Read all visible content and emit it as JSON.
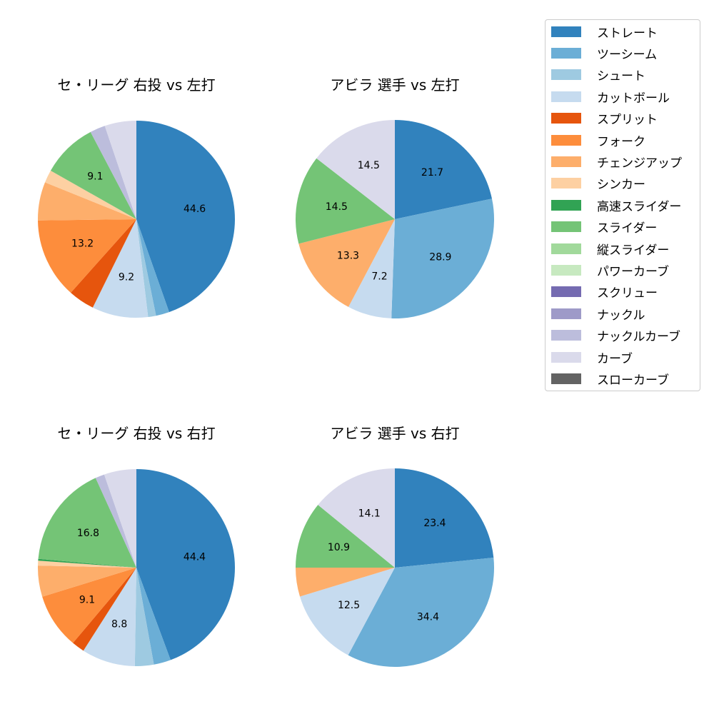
{
  "chart_data": [
    {
      "type": "pie",
      "title": "セ・リーグ 右投 vs 左打",
      "categories": [
        "ストレート",
        "ツーシーム",
        "シュート",
        "カットボール",
        "スプリット",
        "フォーク",
        "チェンジアップ",
        "シンカー",
        "スライダー",
        "ナックルカーブ",
        "カーブ"
      ],
      "values": [
        44.6,
        2.2,
        1.3,
        9.2,
        4.3,
        13.2,
        6.3,
        2.1,
        9.1,
        2.5,
        5.2
      ],
      "labels_shown": [
        "44.6",
        "",
        "",
        "9.2",
        "",
        "13.2",
        "",
        "",
        "9.1",
        "",
        ""
      ]
    },
    {
      "type": "pie",
      "title": "アビラ 選手 vs 左打",
      "categories": [
        "ストレート",
        "ツーシーム",
        "カットボール",
        "チェンジアップ",
        "スライダー",
        "カーブ"
      ],
      "values": [
        21.7,
        28.9,
        7.2,
        13.3,
        14.5,
        14.5
      ],
      "labels_shown": [
        "21.7",
        "28.9",
        "7.2",
        "13.3",
        "14.5",
        "14.5"
      ]
    },
    {
      "type": "pie",
      "title": "セ・リーグ 右投 vs 右打",
      "categories": [
        "ストレート",
        "ツーシーム",
        "シュート",
        "カットボール",
        "スプリット",
        "フォーク",
        "チェンジアップ",
        "シンカー",
        "高速スライダー",
        "スライダー",
        "ナックルカーブ",
        "カーブ"
      ],
      "values": [
        44.4,
        2.8,
        3.1,
        8.8,
        2.1,
        9.1,
        5.1,
        0.8,
        0.3,
        16.8,
        1.5,
        5.3
      ],
      "labels_shown": [
        "44.4",
        "",
        "",
        "8.8",
        "",
        "9.1",
        "",
        "",
        "",
        "16.8",
        "",
        ""
      ]
    },
    {
      "type": "pie",
      "title": "アビラ 選手 vs 右打",
      "categories": [
        "ストレート",
        "ツーシーム",
        "カットボール",
        "チェンジアップ",
        "スライダー",
        "カーブ"
      ],
      "values": [
        23.4,
        34.4,
        12.5,
        4.7,
        10.9,
        14.1
      ],
      "labels_shown": [
        "23.4",
        "34.4",
        "12.5",
        "",
        "10.9",
        "14.1"
      ]
    }
  ],
  "panels": [
    {
      "title": "セ・リーグ 右投 vs 左打"
    },
    {
      "title": "アビラ 選手 vs 左打"
    },
    {
      "title": "セ・リーグ 右投 vs 右打"
    },
    {
      "title": "アビラ 選手 vs 右打"
    }
  ],
  "legend": {
    "position": "upper right",
    "items": [
      {
        "label": "ストレート",
        "color": "#3182bd"
      },
      {
        "label": "ツーシーム",
        "color": "#6baed6"
      },
      {
        "label": "シュート",
        "color": "#9ecae1"
      },
      {
        "label": "カットボール",
        "color": "#c6dbef"
      },
      {
        "label": "スプリット",
        "color": "#e6550d"
      },
      {
        "label": "フォーク",
        "color": "#fd8d3c"
      },
      {
        "label": "チェンジアップ",
        "color": "#fdae6b"
      },
      {
        "label": "シンカー",
        "color": "#fdd0a2"
      },
      {
        "label": "高速スライダー",
        "color": "#31a354"
      },
      {
        "label": "スライダー",
        "color": "#74c476"
      },
      {
        "label": "縦スライダー",
        "color": "#a1d99b"
      },
      {
        "label": "パワーカーブ",
        "color": "#c7e9c0"
      },
      {
        "label": "スクリュー",
        "color": "#756bb1"
      },
      {
        "label": "ナックル",
        "color": "#9e9ac8"
      },
      {
        "label": "ナックルカーブ",
        "color": "#bcbddc"
      },
      {
        "label": "カーブ",
        "color": "#dadaeb"
      },
      {
        "label": "スローカーブ",
        "color": "#636363"
      }
    ]
  }
}
